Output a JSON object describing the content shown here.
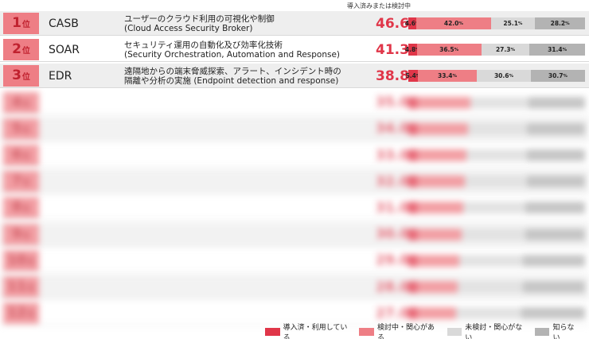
{
  "header_note": "導入済みまたは検討中",
  "chart_data": {
    "type": "bar",
    "stacked": true,
    "orientation": "horizontal",
    "legend_position": "bottom-right",
    "rank_suffix": "位",
    "percent_unit": "%",
    "series": [
      {
        "name": "導入済・利用している",
        "color": "#e03649"
      },
      {
        "name": "検討中・関心がある",
        "color": "#ee7e85"
      },
      {
        "name": "未検討・関心がない",
        "color": "#d9d9d9"
      },
      {
        "name": "知らない",
        "color": "#b3b3b3"
      }
    ],
    "rows": [
      {
        "rank": 1,
        "name": "CASB",
        "desc": [
          "ユーザーのクラウド利用の可視化や制御",
          "(Cloud Access Security Broker)"
        ],
        "total": 46.6,
        "values": [
          4.6,
          42.0,
          25.1,
          28.2
        ],
        "labels": [
          "4.6",
          "42.0",
          "25.1",
          "28.2"
        ],
        "hidden": false
      },
      {
        "rank": 2,
        "name": "SOAR",
        "desc": [
          "セキュリティ運用の自動化及び効率化技術",
          "(Security Orchestration, Automation and Response)"
        ],
        "total": 41.3,
        "values": [
          4.8,
          36.5,
          27.3,
          31.4
        ],
        "labels": [
          "4.8",
          "36.5",
          "27.3",
          "31.4"
        ],
        "hidden": false
      },
      {
        "rank": 3,
        "name": "EDR",
        "desc": [
          "遠隔地からの端末脅威探索、アラート、インシデント時の",
          "隔離や分析の実施 (Endpoint detection and response)"
        ],
        "total": 38.8,
        "values": [
          5.4,
          33.4,
          30.6,
          30.7
        ],
        "labels": [
          "5.4",
          "33.4",
          "30.6",
          "30.7"
        ],
        "hidden": false
      },
      {
        "rank": 4,
        "name": "",
        "desc": [
          "",
          ""
        ],
        "total": 35.0,
        "values": [
          5.0,
          30.0,
          33.0,
          32.0
        ],
        "labels": [
          "",
          "",
          "",
          ""
        ],
        "hidden": true
      },
      {
        "rank": 5,
        "name": "",
        "desc": [
          "",
          ""
        ],
        "total": 34.0,
        "values": [
          5.0,
          29.0,
          33.0,
          33.0
        ],
        "labels": [
          "",
          "",
          "",
          ""
        ],
        "hidden": true
      },
      {
        "rank": 6,
        "name": "",
        "desc": [
          "",
          ""
        ],
        "total": 33.0,
        "values": [
          5.0,
          28.0,
          34.0,
          33.0
        ],
        "labels": [
          "",
          "",
          "",
          ""
        ],
        "hidden": true
      },
      {
        "rank": 7,
        "name": "",
        "desc": [
          "",
          ""
        ],
        "total": 32.0,
        "values": [
          5.0,
          27.0,
          35.0,
          33.0
        ],
        "labels": [
          "",
          "",
          "",
          ""
        ],
        "hidden": true
      },
      {
        "rank": 8,
        "name": "",
        "desc": [
          "",
          ""
        ],
        "total": 31.0,
        "values": [
          5.0,
          26.0,
          35.0,
          34.0
        ],
        "labels": [
          "",
          "",
          "",
          ""
        ],
        "hidden": true
      },
      {
        "rank": 9,
        "name": "",
        "desc": [
          "",
          ""
        ],
        "total": 30.0,
        "values": [
          5.0,
          25.0,
          36.0,
          34.0
        ],
        "labels": [
          "",
          "",
          "",
          ""
        ],
        "hidden": true
      },
      {
        "rank": 10,
        "name": "",
        "desc": [
          "",
          ""
        ],
        "total": 29.0,
        "values": [
          5.0,
          24.0,
          36.0,
          35.0
        ],
        "labels": [
          "",
          "",
          "",
          ""
        ],
        "hidden": true
      },
      {
        "rank": 11,
        "name": "",
        "desc": [
          "",
          ""
        ],
        "total": 28.0,
        "values": [
          5.0,
          23.0,
          37.0,
          35.0
        ],
        "labels": [
          "",
          "",
          "",
          ""
        ],
        "hidden": true
      },
      {
        "rank": 12,
        "name": "",
        "desc": [
          "",
          ""
        ],
        "total": 27.0,
        "values": [
          5.0,
          22.0,
          37.0,
          36.0
        ],
        "labels": [
          "",
          "",
          "",
          ""
        ],
        "hidden": true
      }
    ]
  }
}
